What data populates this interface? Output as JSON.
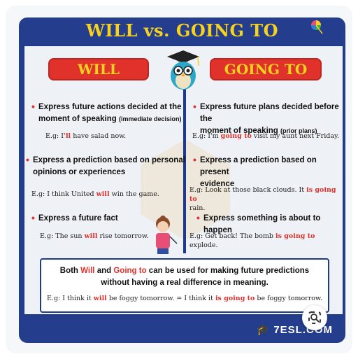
{
  "title": "WILL vs. GOING TO",
  "left": {
    "header": "WILL",
    "items": [
      {
        "line1": "Express future actions decided at the",
        "line2": "moment of speaking",
        "note": "(immediate decision)",
        "ex_prefix": "E.g: ",
        "ex_a": "I",
        "ex_red": "'ll",
        "ex_b": " have salad now."
      },
      {
        "line1": "Express a prediction based on personal",
        "line2": "opinions or experiences",
        "ex_prefix": "E.g: ",
        "ex_a": "I think United ",
        "ex_red": "will",
        "ex_b": " win the game."
      },
      {
        "line1": "Express a future fact",
        "ex_prefix": "E.g: ",
        "ex_a": "The sun ",
        "ex_red": "will",
        "ex_b": " rise tomorrow."
      }
    ]
  },
  "right": {
    "header": "GOING TO",
    "items": [
      {
        "line1": "Express future plans decided before the",
        "line2": "moment of speaking",
        "note": "(prior plans)",
        "ex_prefix": "E.g: ",
        "ex_a": "I'm ",
        "ex_red": "going to",
        "ex_b": " visit my aunt next Friday."
      },
      {
        "line1": "Express a prediction based on present",
        "line2": "evidence",
        "ex_prefix": "E.g: ",
        "ex_a": "Look at those black clouds. It ",
        "ex_red": "is going to",
        "ex_b": "rain."
      },
      {
        "line1": "Express something is about to happen",
        "ex_prefix": "E.g: ",
        "ex_a": "Get back! The bomb ",
        "ex_red": "is going to",
        "ex_b": " explode."
      }
    ]
  },
  "bottom": {
    "t1": "Both ",
    "will": "Will",
    "t2": " and ",
    "goingto": "Going to",
    "t3": " can be used for making future predictions without having a real difference in meaning.",
    "ex1": "E.g: I think it ",
    "ex_will": "will",
    "ex2": " be foggy tomorrow. = I think it ",
    "ex_going": "is going to",
    "ex3": " be foggy tomorrow."
  },
  "logo": {
    "mark": "7ESL",
    "suffix": ".COM"
  },
  "colors": {
    "navy": "#243d8c",
    "red": "#e0312b",
    "yellow": "#f5d21f"
  }
}
